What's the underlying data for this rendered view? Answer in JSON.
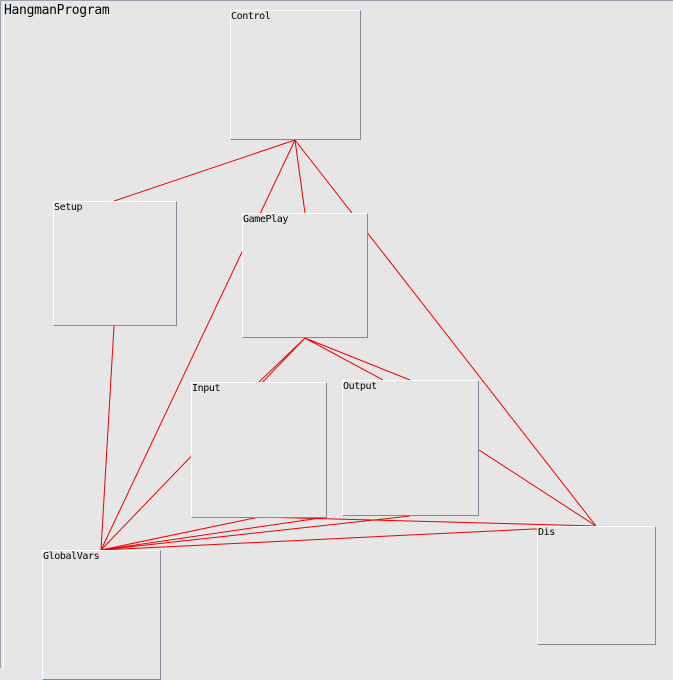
{
  "window": {
    "title": "HangmanProgram"
  },
  "modules": [
    {
      "id": "control",
      "label": "Control"
    },
    {
      "id": "setup",
      "label": "Setup"
    },
    {
      "id": "gameplay",
      "label": "GamePlay"
    },
    {
      "id": "input",
      "label": "Input"
    },
    {
      "id": "output",
      "label": "Output"
    },
    {
      "id": "globalvars",
      "label": "GlobalVars"
    },
    {
      "id": "dis",
      "label": "Dis"
    }
  ],
  "connections": [
    [
      "control",
      "setup"
    ],
    [
      "control",
      "gameplay"
    ],
    [
      "control",
      "globalvars"
    ],
    [
      "control",
      "dis"
    ],
    [
      "setup",
      "globalvars"
    ],
    [
      "gameplay",
      "input"
    ],
    [
      "gameplay",
      "output"
    ],
    [
      "gameplay",
      "globalvars"
    ],
    [
      "input",
      "globalvars"
    ],
    [
      "output",
      "globalvars"
    ],
    [
      "output",
      "dis"
    ],
    [
      "globalvars",
      "dis"
    ]
  ],
  "colors": {
    "connector": "#ee0000",
    "background": "#e6e6e6"
  }
}
